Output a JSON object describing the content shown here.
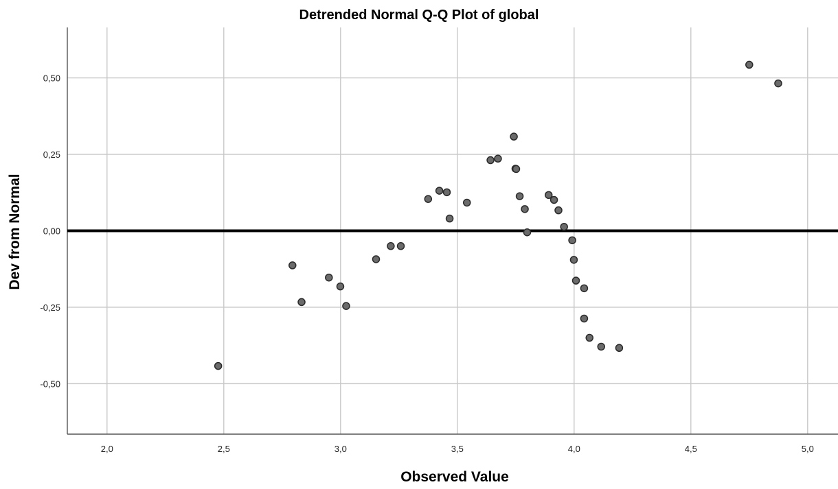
{
  "chart_data": {
    "type": "scatter",
    "title": "Detrended Normal Q-Q Plot of global",
    "xlabel": "Observed Value",
    "ylabel": "Dev from Normal",
    "xlim": [
      1.83,
      5.13
    ],
    "ylim": [
      -0.665,
      0.665
    ],
    "x_ticks": [
      2.0,
      2.5,
      3.0,
      3.5,
      4.0,
      4.5,
      5.0
    ],
    "x_tick_labels": [
      "2,0",
      "2,5",
      "3,0",
      "3,5",
      "4,0",
      "4,5",
      "5,0"
    ],
    "y_ticks": [
      0.5,
      0.25,
      0.0,
      -0.25,
      -0.5
    ],
    "y_tick_labels": [
      "0,50",
      "0,25",
      "0,00",
      "-0,25",
      "-0,50"
    ],
    "grid": true,
    "reference_line_y": 0.0,
    "points": [
      {
        "x": 2.476,
        "y": -0.442
      },
      {
        "x": 2.794,
        "y": -0.113
      },
      {
        "x": 2.833,
        "y": -0.233
      },
      {
        "x": 2.95,
        "y": -0.153
      },
      {
        "x": 2.999,
        "y": -0.182
      },
      {
        "x": 3.024,
        "y": -0.246
      },
      {
        "x": 3.152,
        "y": -0.093
      },
      {
        "x": 3.215,
        "y": -0.05
      },
      {
        "x": 3.258,
        "y": -0.05
      },
      {
        "x": 3.375,
        "y": 0.104
      },
      {
        "x": 3.423,
        "y": 0.131
      },
      {
        "x": 3.455,
        "y": 0.126
      },
      {
        "x": 3.467,
        "y": 0.04
      },
      {
        "x": 3.541,
        "y": 0.092
      },
      {
        "x": 3.642,
        "y": 0.231
      },
      {
        "x": 3.674,
        "y": 0.236
      },
      {
        "x": 3.742,
        "y": 0.308
      },
      {
        "x": 3.749,
        "y": 0.203
      },
      {
        "x": 3.752,
        "y": 0.202
      },
      {
        "x": 3.767,
        "y": 0.113
      },
      {
        "x": 3.789,
        "y": 0.071
      },
      {
        "x": 3.799,
        "y": -0.005
      },
      {
        "x": 3.891,
        "y": 0.117
      },
      {
        "x": 3.914,
        "y": 0.101
      },
      {
        "x": 3.933,
        "y": 0.067
      },
      {
        "x": 3.957,
        "y": 0.013
      },
      {
        "x": 3.992,
        "y": -0.031
      },
      {
        "x": 3.999,
        "y": -0.095
      },
      {
        "x": 4.008,
        "y": -0.163
      },
      {
        "x": 4.043,
        "y": -0.188
      },
      {
        "x": 4.043,
        "y": -0.287
      },
      {
        "x": 4.066,
        "y": -0.35
      },
      {
        "x": 4.116,
        "y": -0.379
      },
      {
        "x": 4.193,
        "y": -0.383
      },
      {
        "x": 4.75,
        "y": 0.543
      },
      {
        "x": 4.874,
        "y": 0.482
      }
    ]
  }
}
